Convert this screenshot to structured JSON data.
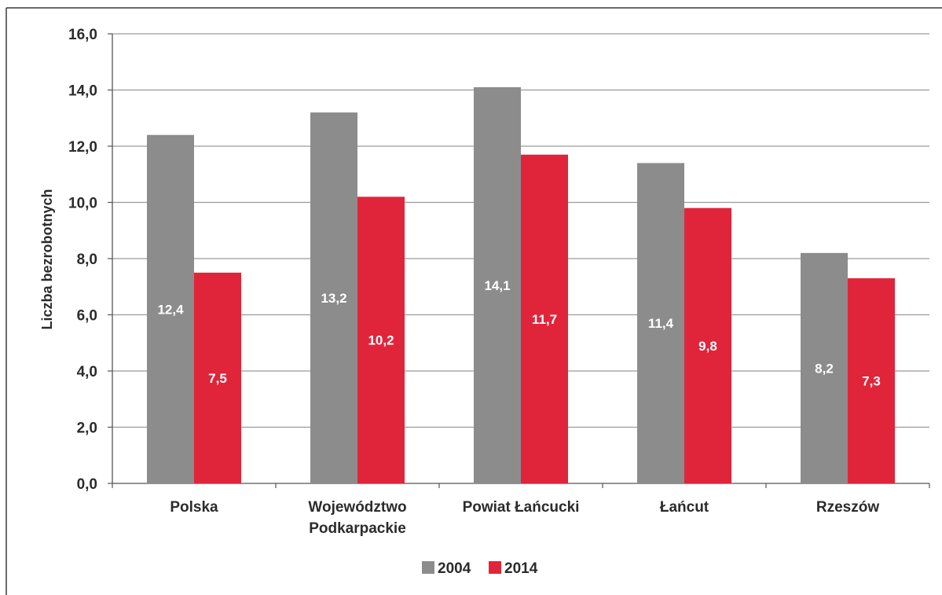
{
  "chart_data": {
    "type": "bar",
    "title": "",
    "xlabel": "",
    "ylabel": "Liczba bezrobotnych",
    "ylim": [
      0,
      16
    ],
    "yticks": [
      "0,0",
      "2,0",
      "4,0",
      "6,0",
      "8,0",
      "10,0",
      "12,0",
      "14,0",
      "16,0"
    ],
    "categories": [
      [
        "Polska"
      ],
      [
        "Województwo",
        "Podkarpackie"
      ],
      [
        "Powiat Łańcucki"
      ],
      [
        "Łańcut"
      ],
      [
        "Rzeszów"
      ]
    ],
    "series": [
      {
        "name": "2004",
        "color": "#8c8c8c",
        "values": [
          12.4,
          13.2,
          14.1,
          11.4,
          8.2
        ],
        "labels": [
          "12,4",
          "13,2",
          "14,1",
          "11,4",
          "8,2"
        ]
      },
      {
        "name": "2014",
        "color": "#e0253b",
        "values": [
          7.5,
          10.2,
          11.7,
          9.8,
          7.3
        ],
        "labels": [
          "7,5",
          "10,2",
          "11,7",
          "9,8",
          "7,3"
        ]
      }
    ],
    "grid": true,
    "legend_position": "bottom"
  }
}
